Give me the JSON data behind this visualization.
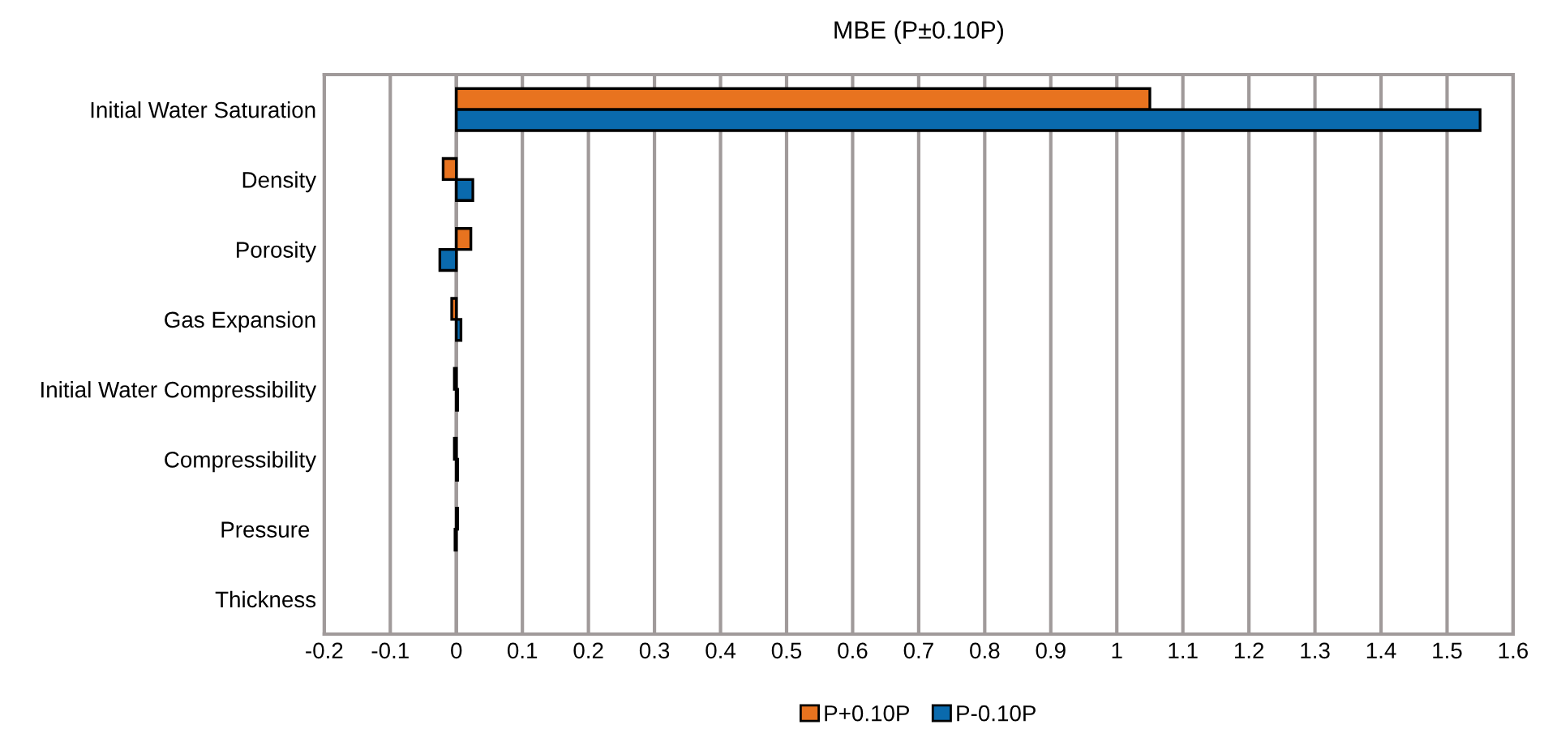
{
  "chart_data": {
    "type": "bar",
    "orientation": "horizontal",
    "title": "MBE (P±0.10P)",
    "categories": [
      "Initial Water Saturation",
      "Density",
      "Porosity",
      "Gas Expansion",
      "Initial Water Compressibility",
      "Compressibility",
      "Pressure ",
      "Thickness"
    ],
    "series": [
      {
        "name": "P+0.10P",
        "color": "#e8731f",
        "values": [
          1.05,
          -0.02,
          0.022,
          -0.007,
          -0.003,
          -0.003,
          0.002,
          null
        ]
      },
      {
        "name": "P-0.10P",
        "color": "#0a6aad",
        "values": [
          1.55,
          0.025,
          -0.025,
          0.007,
          0.002,
          0.002,
          -0.002,
          null
        ]
      }
    ],
    "xlim": [
      -0.2,
      1.6
    ],
    "xticks": [
      -0.2,
      -0.1,
      0,
      0.1,
      0.2,
      0.3,
      0.4,
      0.5,
      0.6,
      0.7,
      0.8,
      0.9,
      1,
      1.1,
      1.2,
      1.3,
      1.4,
      1.5,
      1.6
    ],
    "grid": "x",
    "legend": "bottom"
  }
}
